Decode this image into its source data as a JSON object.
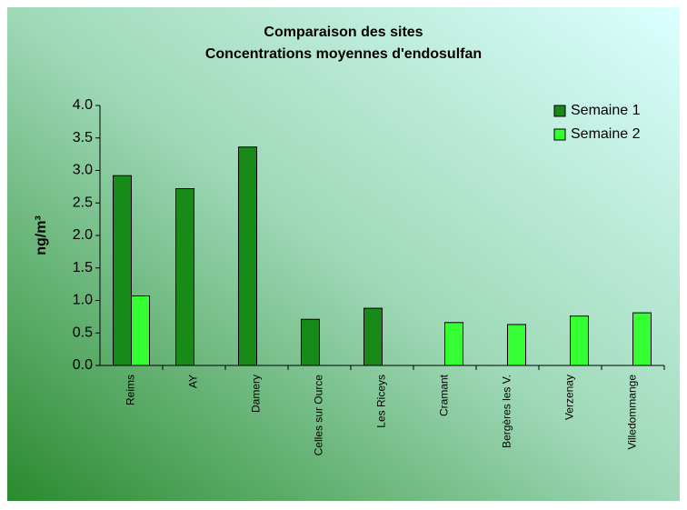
{
  "chart_data": {
    "type": "bar",
    "title": "Comparaison des sites",
    "subtitle": "Concentrations moyennes d'endosulfan",
    "y_label": "ng/m³",
    "categories": [
      "Reims",
      "AY",
      "Damery",
      "Celles sur Ource",
      "Les Riceys",
      "Cramant",
      "Bergères les V.",
      "Verzenay",
      "Villedommange"
    ],
    "series": [
      {
        "name": "Semaine 1",
        "color": "#178a17",
        "values": [
          2.92,
          2.72,
          3.36,
          0.71,
          0.88,
          null,
          null,
          null,
          null
        ]
      },
      {
        "name": "Semaine 2",
        "color": "#33ff33",
        "values": [
          1.07,
          null,
          null,
          null,
          null,
          0.66,
          0.63,
          0.76,
          0.81
        ]
      }
    ],
    "ylim": [
      0,
      4
    ],
    "yticks": [
      {
        "value": 0,
        "label": "0.0"
      },
      {
        "value": 0.5,
        "label": "0.5"
      },
      {
        "value": 1,
        "label": "1.0"
      },
      {
        "value": 1.5,
        "label": "1.5"
      },
      {
        "value": 2,
        "label": "2.0"
      },
      {
        "value": 2.5,
        "label": "2.5"
      },
      {
        "value": 3,
        "label": "3.0"
      },
      {
        "value": 3.5,
        "label": "3.5"
      },
      {
        "value": 4,
        "label": "4.0"
      }
    ],
    "legend": "top-right"
  }
}
